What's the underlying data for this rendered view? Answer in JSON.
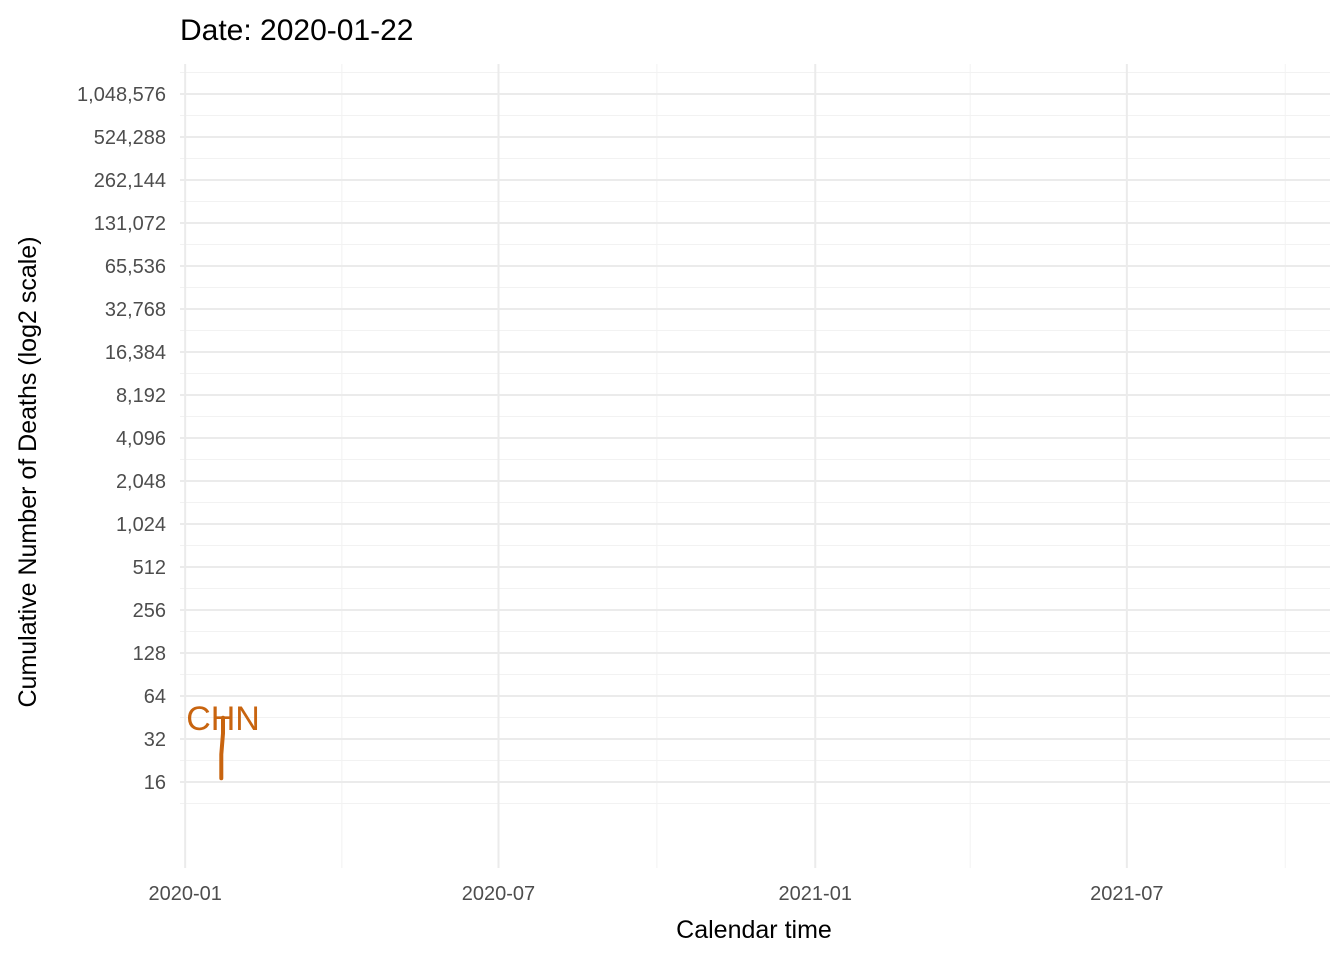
{
  "chart_data": {
    "type": "line",
    "title": "Date: 2020-01-22",
    "xlabel": "Calendar time",
    "ylabel": "Cumulative Number of Deaths (log2 scale)",
    "x_axis": {
      "type": "date",
      "range": [
        "2019-12-29",
        "2021-10-27"
      ],
      "major_ticks": [
        "2020-01-01",
        "2020-07-01",
        "2021-01-01",
        "2021-07-01"
      ],
      "major_tick_labels": [
        "2020-01",
        "2020-07",
        "2021-01",
        "2021-07"
      ],
      "minor_ticks": [
        "2020-04-01",
        "2020-10-01",
        "2021-04-01",
        "2021-10-01"
      ]
    },
    "y_axis": {
      "scale": "log2",
      "range": [
        4,
        1700000
      ],
      "ticks": [
        16,
        32,
        64,
        128,
        256,
        512,
        1024,
        2048,
        4096,
        8192,
        16384,
        32768,
        65536,
        131072,
        262144,
        524288,
        1048576
      ],
      "tick_labels": [
        "16",
        "32",
        "64",
        "128",
        "256",
        "512",
        "1,024",
        "2,048",
        "4,096",
        "8,192",
        "16,384",
        "32,768",
        "65,536",
        "131,072",
        "262,144",
        "524,288",
        "1,048,576"
      ]
    },
    "grid": true,
    "legend": "none",
    "series": [
      {
        "label": "CHN",
        "color": "#c8640f",
        "points": [
          {
            "x": "2020-01-22",
            "y": 17
          },
          {
            "x": "2020-01-22",
            "y": 25
          },
          {
            "x": "2020-01-23",
            "y": 35
          },
          {
            "x": "2020-01-23",
            "y": 45
          }
        ]
      }
    ]
  }
}
